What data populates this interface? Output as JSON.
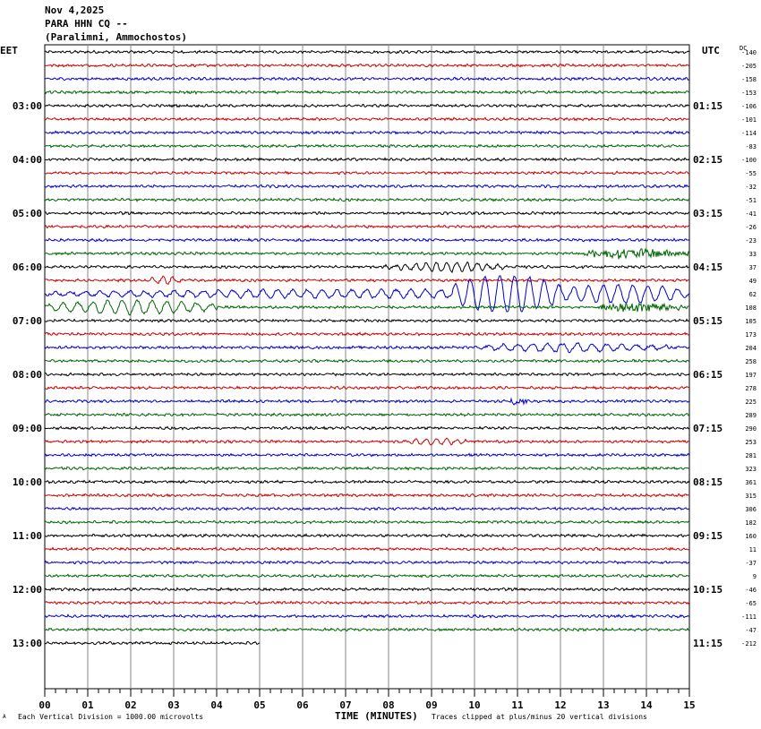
{
  "header": {
    "date": "Nov 4,2025",
    "station": "PARA HHN CQ --",
    "location": "(Paralimni, Ammochostos)"
  },
  "left_tz": "EET",
  "right_tz": "UTC",
  "dc_label": "DC",
  "footer": {
    "scale_note": "Each Vertical Division = 1000.00 microvolts",
    "clip_note": "Traces clipped at plus/minus 20 vertical divisions",
    "corner_mark": "A"
  },
  "colors": {
    "black": "#000000",
    "red": "#cc0000",
    "blue": "#0000cc",
    "green": "#006600",
    "grid": "#888888"
  },
  "chart_data": {
    "type": "line",
    "xlabel": "TIME (MINUTES)",
    "xlim": [
      0,
      15
    ],
    "x_ticks": [
      "00",
      "01",
      "02",
      "03",
      "04",
      "05",
      "06",
      "07",
      "08",
      "09",
      "10",
      "11",
      "12",
      "13",
      "14",
      "15"
    ],
    "left_hour_labels": [
      "03:00",
      "04:00",
      "05:00",
      "06:00",
      "07:00",
      "08:00",
      "09:00",
      "10:00",
      "11:00",
      "12:00",
      "13:00"
    ],
    "right_hour_labels": [
      "01:15",
      "02:15",
      "03:15",
      "04:15",
      "05:15",
      "06:15",
      "07:15",
      "08:15",
      "09:15",
      "10:15",
      "11:15"
    ],
    "dc_offsets": [
      "-140",
      "-205",
      "-158",
      "-153",
      "-106",
      "-101",
      "-114",
      "-83",
      "-100",
      "-55",
      "-32",
      "-51",
      "-41",
      "-26",
      "-23",
      "33",
      "37",
      "49",
      "62",
      "108",
      "105",
      "173",
      "204",
      "258",
      "197",
      "278",
      "225",
      "289",
      "290",
      "253",
      "281",
      "323",
      "361",
      "315",
      "306",
      "182",
      "160",
      "11",
      "-37",
      "9",
      "-46",
      "-65",
      "-111",
      "-47",
      "-212"
    ],
    "trace_color_cycle": [
      "black",
      "red",
      "blue",
      "green"
    ],
    "trace_count": 45,
    "last_trace_end_minute": 5,
    "events": [
      {
        "trace": 15,
        "start": 12.4,
        "end": 15,
        "amplitude": 0.45,
        "kind": "hf"
      },
      {
        "trace": 16,
        "start": 7.7,
        "end": 11,
        "amplitude": 0.6,
        "kind": "lf"
      },
      {
        "trace": 17,
        "start": 2.3,
        "end": 3.3,
        "amplitude": 0.5,
        "kind": "lf"
      },
      {
        "trace": 18,
        "start": 0,
        "end": 15,
        "amplitude": 0.55,
        "kind": "surface"
      },
      {
        "trace": 18,
        "start": 9.5,
        "end": 12.0,
        "amplitude": 2.1,
        "kind": "surface"
      },
      {
        "trace": 18,
        "start": 12.0,
        "end": 15,
        "amplitude": 0.9,
        "kind": "surface"
      },
      {
        "trace": 19,
        "start": 0,
        "end": 4,
        "amplitude": 0.9,
        "kind": "surface"
      },
      {
        "trace": 19,
        "start": 12.8,
        "end": 15,
        "amplitude": 0.45,
        "kind": "hf"
      },
      {
        "trace": 22,
        "start": 10.0,
        "end": 14.5,
        "amplitude": 0.55,
        "kind": "surface"
      },
      {
        "trace": 26,
        "start": 10.7,
        "end": 11.3,
        "amplitude": 0.3,
        "kind": "hf"
      },
      {
        "trace": 29,
        "start": 8.2,
        "end": 10.0,
        "amplitude": 0.4,
        "kind": "lf"
      }
    ]
  }
}
